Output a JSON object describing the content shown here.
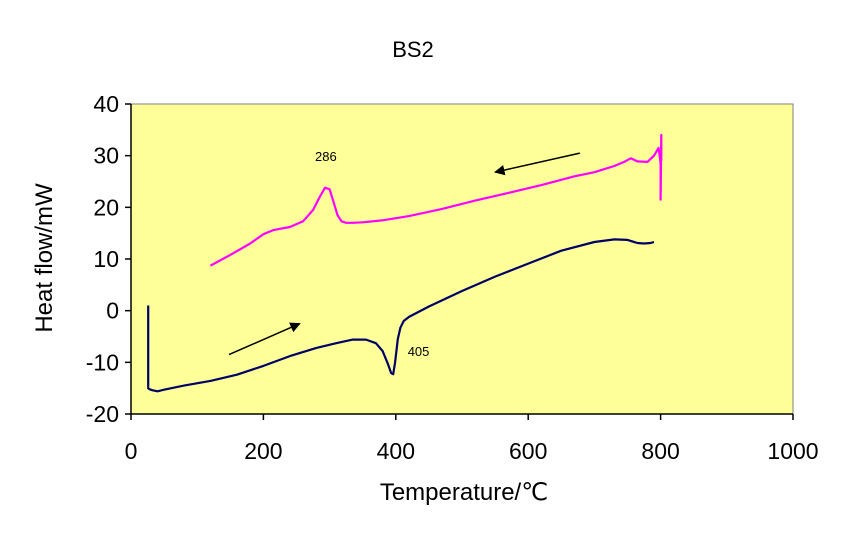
{
  "chart_data": {
    "type": "line",
    "title": "BS2",
    "xlabel": "Temperature/℃",
    "ylabel": "Heat flow/mW",
    "xlim": [
      0,
      1000
    ],
    "ylim": [
      -20,
      40
    ],
    "xticks": [
      0,
      200,
      400,
      600,
      800,
      1000
    ],
    "yticks": [
      -20,
      -10,
      0,
      10,
      20,
      30,
      40
    ],
    "xtick_labels": [
      "0",
      "200",
      "400",
      "600",
      "800",
      "1000"
    ],
    "ytick_labels": [
      "-20",
      "-10",
      "0",
      "10",
      "20",
      "30",
      "40"
    ],
    "grid": false,
    "plot_background": "#ffff99",
    "series": [
      {
        "color": "#ff00ff",
        "x": [
          120,
          150,
          180,
          200,
          215,
          240,
          260,
          275,
          285,
          293,
          300,
          306,
          312,
          318,
          325,
          335,
          350,
          380,
          420,
          470,
          520,
          570,
          620,
          670,
          700,
          730,
          745,
          755,
          765,
          780,
          790,
          797,
          800,
          800,
          801,
          801
        ],
        "y": [
          8.7,
          10.8,
          13,
          14.8,
          15.6,
          16.2,
          17.3,
          19.5,
          22,
          23.8,
          23.5,
          21,
          18.5,
          17.3,
          17.0,
          17.0,
          17.1,
          17.5,
          18.3,
          19.7,
          21.3,
          22.8,
          24.3,
          26.0,
          26.8,
          28.0,
          28.8,
          29.5,
          28.9,
          28.8,
          30,
          31.5,
          28.5,
          21.5,
          34,
          29
        ]
      },
      {
        "color": "#000066",
        "x": [
          26,
          26,
          28,
          32,
          40,
          50,
          80,
          120,
          160,
          200,
          240,
          280,
          310,
          335,
          355,
          370,
          380,
          388,
          393,
          396,
          399,
          403,
          407,
          412,
          420,
          450,
          500,
          550,
          600,
          650,
          700,
          730,
          750,
          765,
          775,
          785,
          790
        ],
        "y": [
          1,
          -15,
          -15.2,
          -15.4,
          -15.6,
          -15.3,
          -14.5,
          -13.6,
          -12.4,
          -10.7,
          -8.8,
          -7.2,
          -6.3,
          -5.6,
          -5.6,
          -6.3,
          -7.8,
          -10.3,
          -12.1,
          -12.3,
          -10,
          -5.5,
          -3.3,
          -2,
          -1.2,
          0.8,
          3.8,
          6.6,
          9.1,
          11.6,
          13.3,
          13.8,
          13.7,
          13.1,
          13.0,
          13.1,
          13.3
        ]
      }
    ],
    "annotations": [
      {
        "text": "286",
        "x": 278,
        "y": 29.0
      },
      {
        "text": "405",
        "x": 418,
        "y": -8.8
      }
    ],
    "arrows": [
      {
        "from": [
          678,
          30.5
        ],
        "to": [
          550,
          26.8
        ],
        "color": "#000000"
      },
      {
        "from": [
          148,
          -8.5
        ],
        "to": [
          255,
          -2.5
        ],
        "color": "#000000"
      }
    ]
  }
}
